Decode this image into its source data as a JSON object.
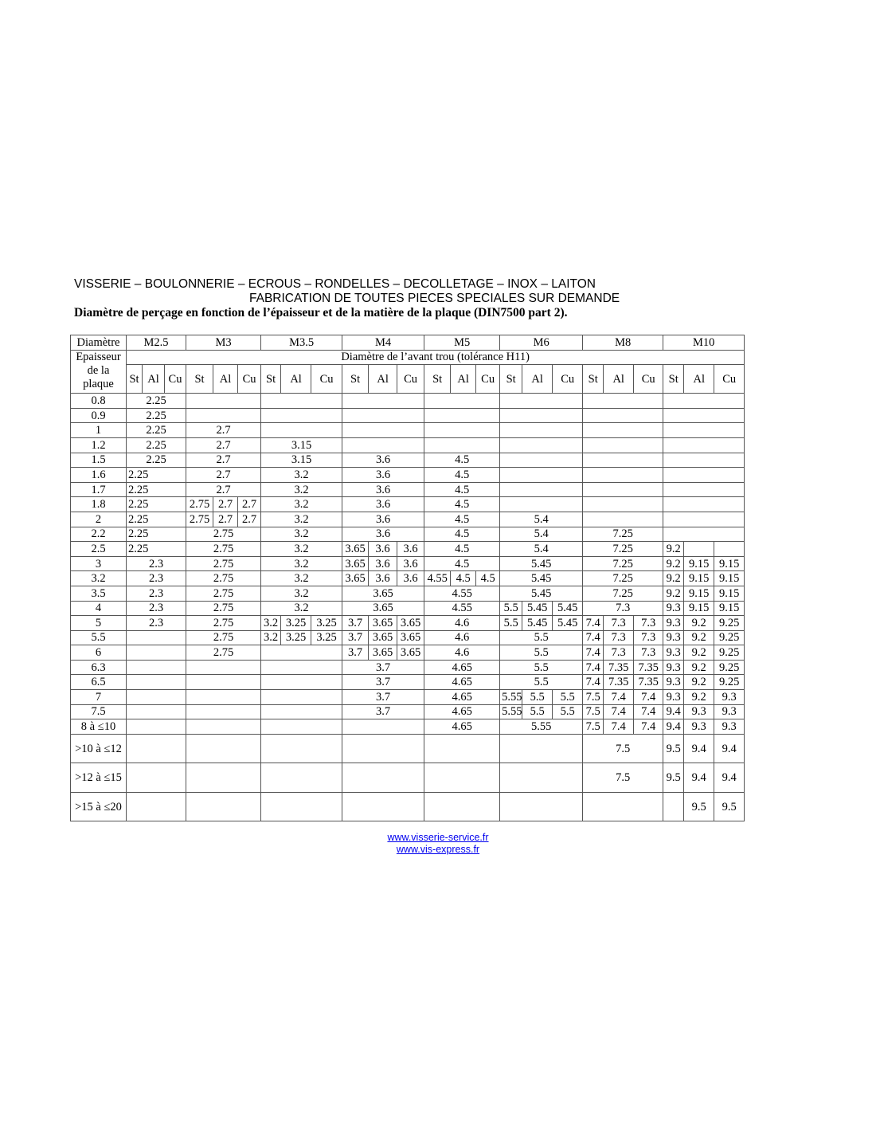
{
  "header": {
    "line1": "VISSERIE – BOULONNERIE – ECROUS – RONDELLES – DECOLLETAGE – INOX – LAITON",
    "line2": "FABRICATION DE TOUTES PIECES SPECIALES SUR DEMANDE",
    "title": "Diamètre de perçage en fonction de l’épaisseur et de la matière de la plaque (DIN7500 part 2)."
  },
  "table": {
    "corner_label": "Diamètre",
    "thickness_label": "Epaisseur de la plaque",
    "subtitle": "Diamètre de l’avant trou (tolérance H11)",
    "sizes": [
      "M2.5",
      "M3",
      "M3.5",
      "M4",
      "M5",
      "M6",
      "M8",
      "M10"
    ],
    "materials": [
      "St",
      "Al",
      "Cu"
    ],
    "rows": [
      {
        "t": "0.8",
        "g": [
          "2.25",
          "",
          "",
          "",
          "",
          "",
          "",
          ""
        ]
      },
      {
        "t": "0.9",
        "g": [
          "2.25",
          "",
          "",
          "",
          "",
          "",
          "",
          ""
        ]
      },
      {
        "t": "1",
        "g": [
          "2.25",
          "2.7",
          "",
          "",
          "",
          "",
          "",
          ""
        ]
      },
      {
        "t": "1.2",
        "g": [
          "2.25",
          "2.7",
          "3.15",
          "",
          "",
          "",
          "",
          ""
        ]
      },
      {
        "t": "1.5",
        "g": [
          "2.25",
          "2.7",
          "3.15",
          "3.6",
          "4.5",
          "",
          "",
          ""
        ]
      },
      {
        "t": "1.6",
        "g": [
          "2.25",
          "2.7",
          "3.2",
          "3.6",
          "4.5",
          "",
          "",
          ""
        ]
      },
      {
        "t": "1.7",
        "g": [
          "2.25",
          "2.7",
          "3.2",
          "3.6",
          "4.5",
          "",
          "",
          ""
        ]
      },
      {
        "t": "1.8",
        "g": [
          "2.25",
          [
            "2.75",
            "2.7",
            "2.7"
          ],
          "3.2",
          "3.6",
          "4.5",
          "",
          "",
          ""
        ]
      },
      {
        "t": "2",
        "g": [
          "2.25",
          [
            "2.75",
            "2.7",
            "2.7"
          ],
          "3.2",
          "3.6",
          "4.5",
          "5.4",
          "",
          ""
        ]
      },
      {
        "t": "2.2",
        "g": [
          "2.25",
          "2.75",
          "3.2",
          "3.6",
          "4.5",
          "5.4",
          "7.25",
          ""
        ]
      },
      {
        "t": "2.5",
        "g": [
          "2.25",
          "2.75",
          "3.2",
          [
            "3.65",
            "3.6",
            "3.6"
          ],
          "4.5",
          "5.4",
          "7.25",
          [
            "9.2",
            "",
            ""
          ]
        ]
      },
      {
        "t": "3",
        "g": [
          "2.3",
          "2.75",
          "3.2",
          [
            "3.65",
            "3.6",
            "3.6"
          ],
          "4.5",
          "5.45",
          "7.25",
          [
            "9.2",
            "9.15",
            "9.15"
          ]
        ]
      },
      {
        "t": "3.2",
        "g": [
          "2.3",
          "2.75",
          "3.2",
          [
            "3.65",
            "3.6",
            "3.6"
          ],
          [
            "4.55",
            "4.5",
            "4.5"
          ],
          "5.45",
          "7.25",
          [
            "9.2",
            "9.15",
            "9.15"
          ]
        ]
      },
      {
        "t": "3.5",
        "g": [
          "2.3",
          "2.75",
          "3.2",
          "3.65",
          "4.55",
          "5.45",
          "7.25",
          [
            "9.2",
            "9.15",
            "9.15"
          ]
        ]
      },
      {
        "t": "4",
        "g": [
          "2.3",
          "2.75",
          "3.2",
          "3.65",
          "4.55",
          [
            "5.5",
            "5.45",
            "5.45"
          ],
          "7.3",
          [
            "9.3",
            "9.15",
            "9.15"
          ]
        ]
      },
      {
        "t": "5",
        "g": [
          "2.3",
          "2.75",
          [
            "3.2",
            "3.25",
            "3.25"
          ],
          [
            "3.7",
            "3.65",
            "3.65"
          ],
          "4.6",
          [
            "5.5",
            "5.45",
            "5.45"
          ],
          [
            "7.4",
            "7.3",
            "7.3"
          ],
          [
            "9.3",
            "9.2",
            "9.25"
          ]
        ]
      },
      {
        "t": "5.5",
        "g": [
          "",
          "2.75",
          [
            "3.2",
            "3.25",
            "3.25"
          ],
          [
            "3.7",
            "3.65",
            "3.65"
          ],
          "4.6",
          "5.5",
          [
            "7.4",
            "7.3",
            "7.3"
          ],
          [
            "9.3",
            "9.2",
            "9.25"
          ]
        ]
      },
      {
        "t": "6",
        "g": [
          "",
          "2.75",
          "",
          [
            "3.7",
            "3.65",
            "3.65"
          ],
          "4.6",
          "5.5",
          [
            "7.4",
            "7.3",
            "7.3"
          ],
          [
            "9.3",
            "9.2",
            "9.25"
          ]
        ]
      },
      {
        "t": "6.3",
        "g": [
          "",
          "",
          "",
          "3.7",
          "4.65",
          "5.5",
          [
            "7.4",
            "7.35",
            "7.35"
          ],
          [
            "9.3",
            "9.2",
            "9.25"
          ]
        ]
      },
      {
        "t": "6.5",
        "g": [
          "",
          "",
          "",
          "3.7",
          "4.65",
          "5.5",
          [
            "7.4",
            "7.35",
            "7.35"
          ],
          [
            "9.3",
            "9.2",
            "9.25"
          ]
        ]
      },
      {
        "t": "7",
        "g": [
          "",
          "",
          "",
          "3.7",
          "4.65",
          [
            "5.55",
            "5.5",
            "5.5"
          ],
          [
            "7.5",
            "7.4",
            "7.4"
          ],
          [
            "9.3",
            "9.2",
            "9.3"
          ]
        ]
      },
      {
        "t": "7.5",
        "g": [
          "",
          "",
          "",
          "3.7",
          "4.65",
          [
            "5.55",
            "5.5",
            "5.5"
          ],
          [
            "7.5",
            "7.4",
            "7.4"
          ],
          [
            "9.4",
            "9.3",
            "9.3"
          ]
        ]
      },
      {
        "t": "8 à ≤10",
        "g": [
          "",
          "",
          "",
          "",
          "4.65",
          "5.55",
          [
            "7.5",
            "7.4",
            "7.4"
          ],
          [
            "9.4",
            "9.3",
            "9.3"
          ]
        ]
      },
      {
        "t": ">10 à ≤12",
        "g": [
          "",
          "",
          "",
          "",
          "",
          "",
          "7.5",
          [
            "9.5",
            "9.4",
            "9.4"
          ]
        ]
      },
      {
        "t": ">12 à ≤15",
        "g": [
          "",
          "",
          "",
          "",
          "",
          "",
          "7.5",
          [
            "9.5",
            "9.4",
            "9.4"
          ]
        ]
      },
      {
        "t": ">15 à ≤20",
        "g": [
          "",
          "",
          "",
          "",
          "",
          "",
          "",
          [
            "",
            "9.5",
            "9.5"
          ]
        ]
      }
    ]
  },
  "links": [
    "www.visserie-service.fr",
    "www.vis-express.fr"
  ]
}
